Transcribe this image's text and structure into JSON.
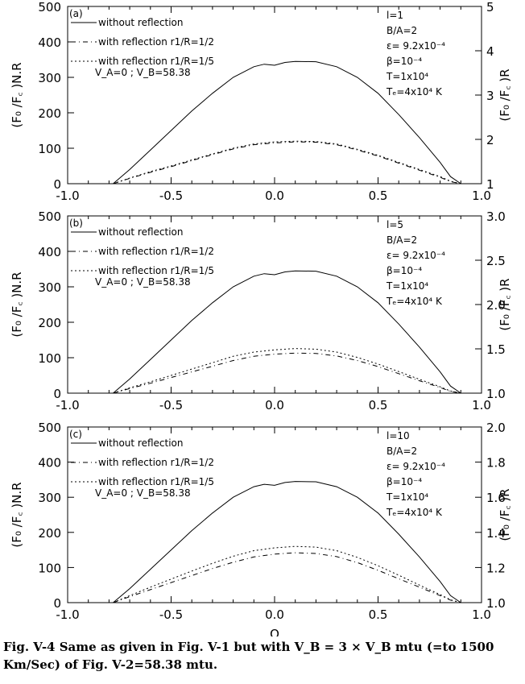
{
  "chart_data": [
    {
      "type": "line",
      "panel_label": "(a)",
      "x_ticks": [
        "-1.0",
        "-0.5",
        "0.0",
        "0.5",
        "1.0"
      ],
      "xlim": [
        -1.0,
        1.0
      ],
      "left_ylabel": "(F₀ /F꜀ )N.R",
      "left_ylim": [
        0,
        500
      ],
      "left_ticks": [
        "0",
        "100",
        "200",
        "300",
        "400",
        "500"
      ],
      "right_ylabel": "(F₀ /F꜀ )R",
      "right_ylim": [
        1,
        5
      ],
      "right_ticks": [
        "1",
        "2",
        "3",
        "4",
        "5"
      ],
      "legend": [
        "without reflection",
        "with reflection r1/R=1/2",
        "with reflection r1/R=1/5"
      ],
      "velocity_note": "V_A=0 ; V_B=58.38",
      "params": [
        "l=1",
        "B/A=2",
        "ε= 9.2x10⁻⁴",
        "β=10⁻⁴",
        "T=1x10⁴",
        "Tₑ=4x10⁴ K"
      ],
      "series": [
        {
          "name": "without reflection",
          "axis": "left",
          "x": [
            -0.78,
            -0.7,
            -0.6,
            -0.5,
            -0.4,
            -0.3,
            -0.2,
            -0.1,
            -0.05,
            0.0,
            0.05,
            0.1,
            0.2,
            0.3,
            0.4,
            0.5,
            0.6,
            0.7,
            0.8,
            0.85,
            0.9
          ],
          "y": [
            0,
            40,
            95,
            150,
            205,
            255,
            300,
            330,
            337,
            334,
            342,
            345,
            344,
            330,
            300,
            255,
            195,
            130,
            60,
            20,
            0
          ]
        },
        {
          "name": "with reflection r1/R=1/2",
          "axis": "left",
          "x": [
            -0.78,
            -0.7,
            -0.6,
            -0.5,
            -0.4,
            -0.3,
            -0.2,
            -0.1,
            0.0,
            0.1,
            0.2,
            0.3,
            0.4,
            0.5,
            0.6,
            0.7,
            0.8,
            0.85,
            0.9
          ],
          "y": [
            0,
            15,
            32,
            48,
            65,
            82,
            98,
            110,
            115,
            118,
            117,
            110,
            95,
            78,
            58,
            38,
            18,
            6,
            0
          ]
        },
        {
          "name": "with reflection r1/R=1/5",
          "axis": "left",
          "x": [
            -0.78,
            -0.7,
            -0.6,
            -0.5,
            -0.4,
            -0.3,
            -0.2,
            -0.1,
            0.0,
            0.1,
            0.2,
            0.3,
            0.4,
            0.5,
            0.6,
            0.7,
            0.8,
            0.85,
            0.9
          ],
          "y": [
            0,
            16,
            34,
            50,
            67,
            84,
            100,
            112,
            118,
            120,
            119,
            112,
            97,
            80,
            60,
            40,
            20,
            7,
            0
          ]
        }
      ]
    },
    {
      "type": "line",
      "panel_label": "(b)",
      "x_ticks": [
        "-1.0",
        "-0.5",
        "0.0",
        "0.5",
        "1.0"
      ],
      "xlim": [
        -1.0,
        1.0
      ],
      "left_ylabel": "(F₀ /F꜀ )N.R",
      "left_ylim": [
        0,
        500
      ],
      "left_ticks": [
        "0",
        "100",
        "200",
        "300",
        "400",
        "500"
      ],
      "right_ylabel": "(F₀ /F꜀ )R",
      "right_ylim": [
        1.0,
        3.0
      ],
      "right_ticks": [
        "1.0",
        "1.5",
        "2.0",
        "2.5",
        "3.0"
      ],
      "legend": [
        "without reflection",
        "with reflection r1/R=1/2",
        "with reflection r1/R=1/5"
      ],
      "velocity_note": "V_A=0 ; V_B=58.38",
      "params": [
        "l=5",
        "B/A=2",
        "ε= 9.2x10⁻⁴",
        "β=10⁻⁴",
        "T=1x10⁴",
        "Tₑ=4x10⁴ K"
      ],
      "series": [
        {
          "name": "without reflection",
          "axis": "left",
          "x": [
            -0.78,
            -0.7,
            -0.6,
            -0.5,
            -0.4,
            -0.3,
            -0.2,
            -0.1,
            -0.05,
            0.0,
            0.05,
            0.1,
            0.2,
            0.3,
            0.4,
            0.5,
            0.6,
            0.7,
            0.8,
            0.85,
            0.9
          ],
          "y": [
            0,
            40,
            95,
            150,
            205,
            255,
            300,
            330,
            337,
            334,
            342,
            345,
            344,
            330,
            300,
            255,
            195,
            130,
            60,
            20,
            0
          ]
        },
        {
          "name": "with reflection r1/R=1/2",
          "axis": "left",
          "x": [
            -0.78,
            -0.7,
            -0.6,
            -0.5,
            -0.4,
            -0.3,
            -0.2,
            -0.1,
            0.0,
            0.1,
            0.2,
            0.3,
            0.4,
            0.5,
            0.6,
            0.7,
            0.8,
            0.85,
            0.9
          ],
          "y": [
            0,
            13,
            28,
            44,
            60,
            76,
            92,
            104,
            110,
            113,
            112,
            105,
            92,
            75,
            55,
            35,
            16,
            5,
            0
          ]
        },
        {
          "name": "with reflection r1/R=1/5",
          "axis": "left",
          "x": [
            -0.78,
            -0.7,
            -0.6,
            -0.5,
            -0.4,
            -0.3,
            -0.2,
            -0.1,
            0.0,
            0.1,
            0.2,
            0.3,
            0.4,
            0.5,
            0.6,
            0.7,
            0.8,
            0.85,
            0.9
          ],
          "y": [
            0,
            15,
            32,
            50,
            68,
            86,
            104,
            116,
            122,
            126,
            124,
            116,
            101,
            82,
            61,
            39,
            18,
            6,
            0
          ]
        }
      ]
    },
    {
      "type": "line",
      "panel_label": "(c)",
      "x_ticks": [
        "-1.0",
        "-0.5",
        "0.0",
        "0.5",
        "1.0"
      ],
      "xlim": [
        -1.0,
        1.0
      ],
      "xlabel": "Q",
      "left_ylabel": "(F₀ /F꜀ )N.R",
      "left_ylim": [
        0,
        500
      ],
      "left_ticks": [
        "0",
        "100",
        "200",
        "300",
        "400",
        "500"
      ],
      "right_ylabel": "(F₀ /F꜀ )R",
      "right_ylim": [
        1.0,
        2.0
      ],
      "right_ticks": [
        "1.0",
        "1.2",
        "1.4",
        "1.6",
        "1.8",
        "2.0"
      ],
      "legend": [
        "without reflection",
        "with reflection r1/R=1/2",
        "with reflection r1/R=1/5"
      ],
      "velocity_note": "V_A=0 ; V_B=58.38",
      "params": [
        "l=10",
        "B/A=2",
        "ε= 9.2x10⁻⁴",
        "β=10⁻⁴",
        "T=1x10⁴",
        "Tₑ=4x10⁴ K"
      ],
      "series": [
        {
          "name": "without reflection",
          "axis": "left",
          "x": [
            -0.78,
            -0.7,
            -0.6,
            -0.5,
            -0.4,
            -0.3,
            -0.2,
            -0.1,
            -0.05,
            0.0,
            0.05,
            0.1,
            0.2,
            0.3,
            0.4,
            0.5,
            0.6,
            0.7,
            0.8,
            0.85,
            0.9
          ],
          "y": [
            0,
            40,
            95,
            150,
            205,
            255,
            300,
            330,
            337,
            334,
            342,
            345,
            344,
            330,
            300,
            255,
            195,
            130,
            60,
            20,
            0
          ]
        },
        {
          "name": "with reflection r1/R=1/2",
          "axis": "left",
          "x": [
            -0.78,
            -0.7,
            -0.6,
            -0.5,
            -0.4,
            -0.3,
            -0.2,
            -0.1,
            0.0,
            0.1,
            0.2,
            0.3,
            0.4,
            0.5,
            0.6,
            0.7,
            0.8,
            0.85,
            0.9
          ],
          "y": [
            0,
            17,
            37,
            57,
            77,
            97,
            115,
            130,
            138,
            142,
            140,
            131,
            114,
            92,
            68,
            44,
            20,
            7,
            0
          ]
        },
        {
          "name": "with reflection r1/R=1/5",
          "axis": "left",
          "x": [
            -0.78,
            -0.7,
            -0.6,
            -0.5,
            -0.4,
            -0.3,
            -0.2,
            -0.1,
            0.0,
            0.1,
            0.2,
            0.3,
            0.4,
            0.5,
            0.6,
            0.7,
            0.8,
            0.85,
            0.9
          ],
          "y": [
            0,
            20,
            44,
            67,
            90,
            112,
            132,
            148,
            156,
            160,
            158,
            148,
            129,
            105,
            78,
            50,
            23,
            8,
            0
          ]
        }
      ]
    }
  ],
  "caption": "Fig. V-4 Same as given in Fig. V-1 but with V_B = 3 × V_B mtu (=to 1500 Km/Sec) of Fig. V-2=58.38 mtu."
}
